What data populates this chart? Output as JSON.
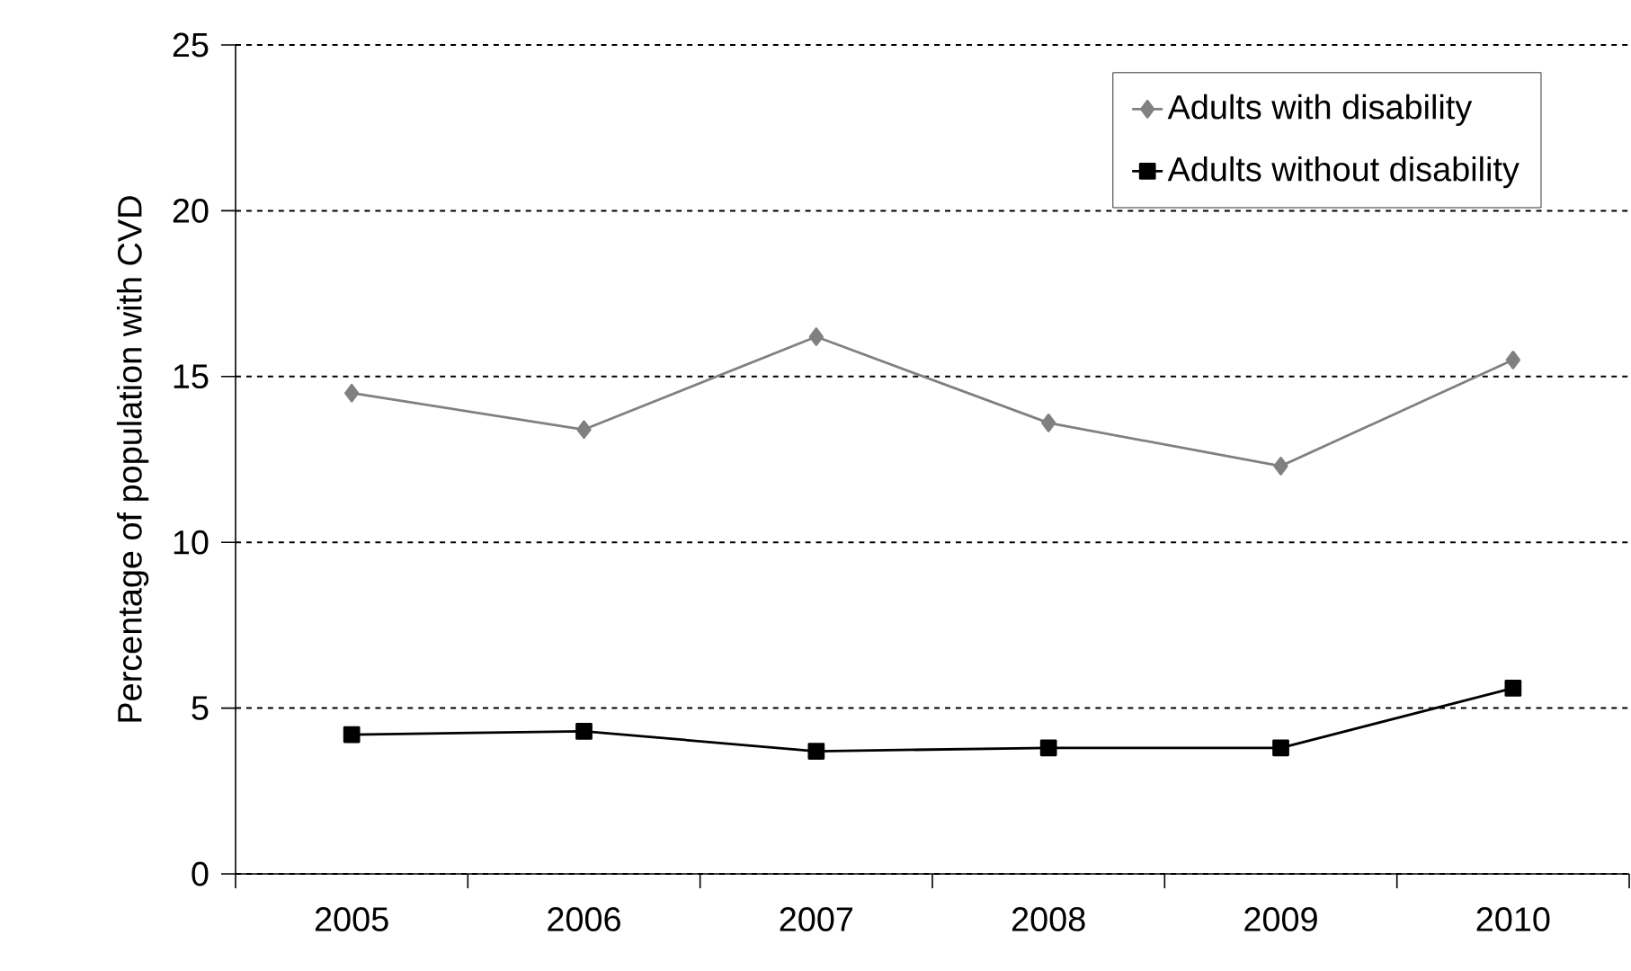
{
  "chart_data": {
    "type": "line",
    "ylabel": "Percentage of population with CVD",
    "categories": [
      "2005",
      "2006",
      "2007",
      "2008",
      "2009",
      "2010"
    ],
    "series": [
      {
        "name": "Adults with disability",
        "color": "#808080",
        "marker": "diamond",
        "values": [
          14.5,
          13.4,
          16.2,
          13.6,
          12.3,
          15.5
        ]
      },
      {
        "name": "Adults without disability",
        "color": "#000000",
        "marker": "square",
        "values": [
          4.2,
          4.3,
          3.7,
          3.8,
          3.8,
          5.6
        ]
      }
    ],
    "ylim": [
      0,
      25
    ],
    "yticks": [
      0,
      5,
      10,
      15,
      20,
      25
    ],
    "grid": "y",
    "legend": "top right",
    "line_style": "solid"
  }
}
